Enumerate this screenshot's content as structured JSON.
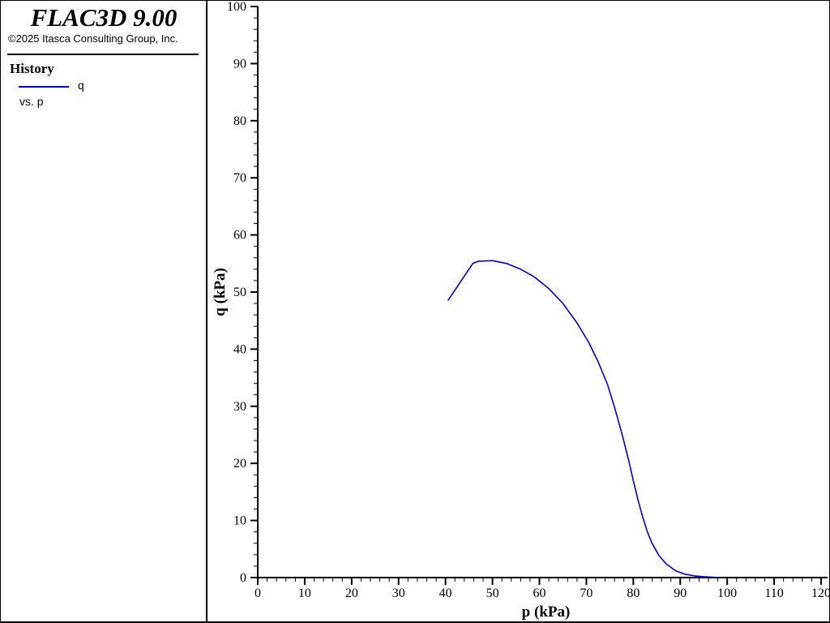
{
  "app": {
    "title": "FLAC3D 9.00",
    "copyright": "©2025 Itasca Consulting Group, Inc."
  },
  "legend": {
    "heading": "History",
    "series_label": "q",
    "vs_label": "vs. p",
    "series_color": "#0000cc"
  },
  "chart_data": {
    "type": "line",
    "xlabel": "p (kPa)",
    "ylabel": "q (kPa)",
    "xlim": [
      0,
      120
    ],
    "ylim": [
      0,
      100
    ],
    "xticks": [
      0,
      10,
      20,
      30,
      40,
      50,
      60,
      70,
      80,
      90,
      100,
      110,
      120
    ],
    "yticks": [
      0,
      10,
      20,
      30,
      40,
      50,
      60,
      70,
      80,
      90,
      100
    ],
    "grid": false,
    "legend_placement": "left-panel",
    "series": [
      {
        "name": "q",
        "color": "#0000cc",
        "x": [
          40.5,
          45.8,
          47.0,
          50.0,
          53.0,
          56.0,
          59.0,
          62.0,
          65.0,
          68.0,
          70.5,
          72.5,
          74.5,
          76.0,
          77.5,
          79.0,
          80.0,
          81.0,
          82.0,
          83.0,
          84.0,
          85.5,
          87.0,
          89.0,
          91.0,
          93.0,
          95.0,
          97.0,
          98.5
        ],
        "y": [
          48.5,
          55.0,
          55.4,
          55.5,
          55.0,
          54.0,
          52.6,
          50.6,
          48.0,
          44.6,
          41.2,
          37.8,
          33.8,
          29.8,
          25.4,
          20.6,
          17.0,
          13.6,
          10.6,
          8.0,
          6.0,
          3.8,
          2.4,
          1.2,
          0.6,
          0.3,
          0.15,
          0.05,
          0.0
        ]
      }
    ]
  }
}
